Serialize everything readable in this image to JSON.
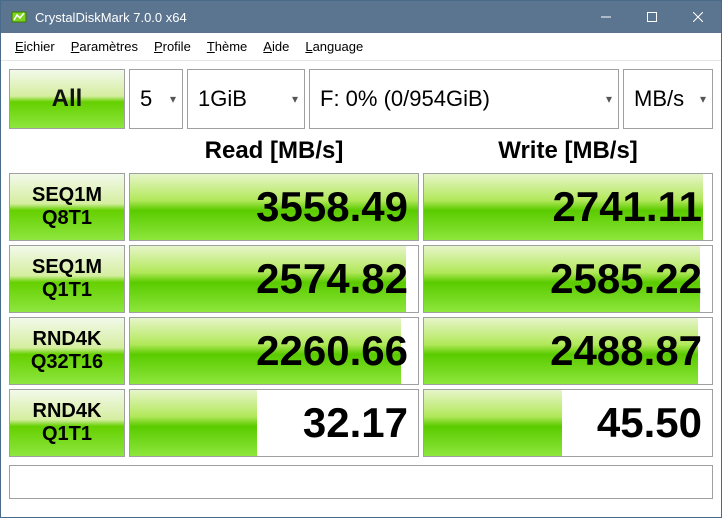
{
  "window": {
    "title": "CrystalDiskMark 7.0.0 x64",
    "bg_color": "#5b7590"
  },
  "menu": {
    "file": "Eichier",
    "settings": "Paramètres",
    "profile": "Profile",
    "theme": "Thème",
    "help": "Aide",
    "language": "Language"
  },
  "controls": {
    "all_label": "All",
    "count": "5",
    "size": "1GiB",
    "drive": "F: 0% (0/954GiB)",
    "unit": "MB/s"
  },
  "headers": {
    "read": "Read [MB/s]",
    "write": "Write [MB/s]"
  },
  "tests": [
    {
      "name": [
        "SEQ1M",
        "Q8T1"
      ],
      "read": "3558.49",
      "read_pct": 100,
      "write": "2741.11",
      "write_pct": 97
    },
    {
      "name": [
        "SEQ1M",
        "Q1T1"
      ],
      "read": "2574.82",
      "read_pct": 96,
      "write": "2585.22",
      "write_pct": 96
    },
    {
      "name": [
        "RND4K",
        "Q32T16"
      ],
      "read": "2260.66",
      "read_pct": 94,
      "write": "2488.87",
      "write_pct": 95
    },
    {
      "name": [
        "RND4K",
        "Q1T1"
      ],
      "read": "32.17",
      "read_pct": 44,
      "write": "45.50",
      "write_pct": 48
    }
  ],
  "colors": {
    "titlebar": "#5b7590",
    "border": "#a0a0a0",
    "green_top": "#e6f5c9",
    "green_mid": "#b2e85a",
    "green_dark": "#5acb00",
    "text": "#111111",
    "background": "#ffffff"
  }
}
